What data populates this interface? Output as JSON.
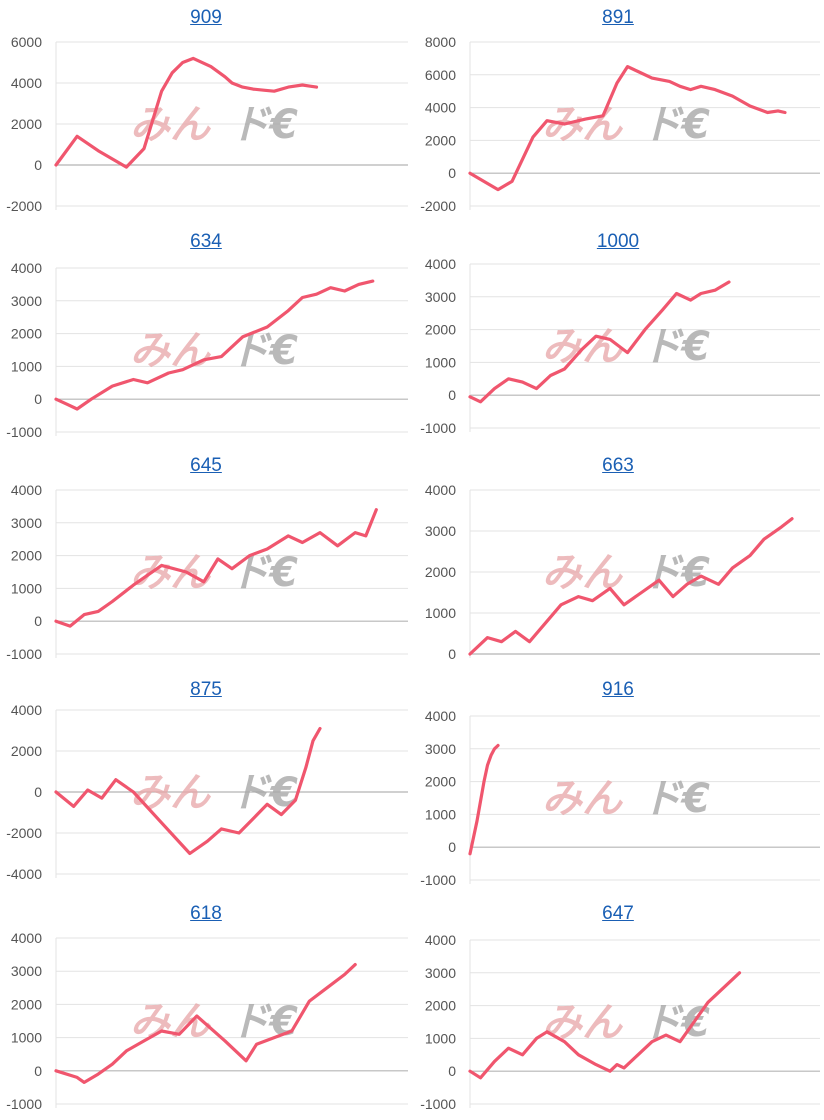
{
  "colors": {
    "line": "#f0566e",
    "grid": "#e3e3e3",
    "axis": "#b5b5b5",
    "title": "#1a5fb4"
  },
  "watermark": {
    "part1": "みん",
    "part2": "ド€"
  },
  "chart_data": [
    {
      "type": "line",
      "title": "909",
      "ylim": [
        -2000,
        6000
      ],
      "yticks": [
        "6000",
        "4000",
        "2000",
        "0",
        "-2000"
      ],
      "series": [
        {
          "x": [
            0,
            6,
            12,
            20,
            25,
            30,
            33,
            36,
            39,
            44,
            48,
            50,
            53,
            56,
            59,
            62,
            66,
            70,
            72,
            74
          ],
          "y": [
            0,
            1400,
            700,
            -100,
            800,
            3600,
            4500,
            5000,
            5200,
            4800,
            4300,
            4000,
            3800,
            3700,
            3650,
            3600,
            3800,
            3900,
            3850,
            3800
          ]
        }
      ]
    },
    {
      "type": "line",
      "title": "891",
      "ylim": [
        -2000,
        8000
      ],
      "yticks": [
        "8000",
        "6000",
        "4000",
        "2000",
        "0",
        "-2000"
      ],
      "series": [
        {
          "x": [
            0,
            8,
            12,
            18,
            22,
            27,
            33,
            38,
            42,
            45,
            48,
            52,
            57,
            60,
            63,
            66,
            70,
            75,
            80,
            85,
            88,
            90
          ],
          "y": [
            0,
            -1000,
            -500,
            2200,
            3200,
            3000,
            3300,
            3500,
            5500,
            6500,
            6200,
            5800,
            5600,
            5300,
            5100,
            5300,
            5100,
            4700,
            4100,
            3700,
            3800,
            3700
          ]
        }
      ]
    },
    {
      "type": "line",
      "title": "634",
      "ylim": [
        -1000,
        4000
      ],
      "yticks": [
        "4000",
        "3000",
        "2000",
        "1000",
        "0",
        "-1000"
      ],
      "series": [
        {
          "x": [
            0,
            3,
            6,
            10,
            16,
            22,
            26,
            32,
            36,
            42,
            47,
            53,
            60,
            66,
            70,
            74,
            78,
            82,
            86,
            90
          ],
          "y": [
            0,
            -150,
            -300,
            0,
            400,
            600,
            500,
            800,
            900,
            1200,
            1300,
            1900,
            2200,
            2700,
            3100,
            3200,
            3400,
            3300,
            3500,
            3600
          ]
        }
      ]
    },
    {
      "type": "line",
      "title": "1000",
      "ylim": [
        -1000,
        4000
      ],
      "yticks": [
        "4000",
        "3000",
        "2000",
        "1000",
        "0",
        "-1000"
      ],
      "series": [
        {
          "x": [
            0,
            3,
            7,
            11,
            15,
            19,
            23,
            27,
            32,
            36,
            40,
            45,
            50,
            55,
            59,
            63,
            66,
            70,
            74
          ],
          "y": [
            -50,
            -200,
            200,
            500,
            400,
            200,
            600,
            800,
            1400,
            1800,
            1700,
            1300,
            2000,
            2600,
            3100,
            2900,
            3100,
            3200,
            3450
          ]
        }
      ]
    },
    {
      "type": "line",
      "title": "645",
      "ylim": [
        -1000,
        4000
      ],
      "yticks": [
        "4000",
        "3000",
        "2000",
        "1000",
        "0",
        "-1000"
      ],
      "series": [
        {
          "x": [
            0,
            4,
            8,
            12,
            16,
            22,
            30,
            37,
            42,
            46,
            50,
            55,
            60,
            66,
            70,
            75,
            80,
            85,
            88,
            91
          ],
          "y": [
            0,
            -150,
            200,
            300,
            600,
            1100,
            1700,
            1500,
            1200,
            1900,
            1600,
            2000,
            2200,
            2600,
            2400,
            2700,
            2300,
            2700,
            2600,
            3400
          ]
        }
      ]
    },
    {
      "type": "line",
      "title": "663",
      "ylim": [
        0,
        4000
      ],
      "yticks": [
        "4000",
        "3000",
        "2000",
        "1000",
        "0"
      ],
      "series": [
        {
          "x": [
            0,
            5,
            9,
            13,
            17,
            21,
            26,
            31,
            35,
            40,
            44,
            49,
            54,
            58,
            62,
            66,
            71,
            75,
            80,
            84,
            89,
            92
          ],
          "y": [
            0,
            400,
            300,
            550,
            300,
            700,
            1200,
            1400,
            1300,
            1600,
            1200,
            1500,
            1800,
            1400,
            1700,
            1900,
            1700,
            2100,
            2400,
            2800,
            3100,
            3300
          ]
        }
      ]
    },
    {
      "type": "line",
      "title": "875",
      "ylim": [
        -4000,
        4000
      ],
      "yticks": [
        "4000",
        "2000",
        "0",
        "-2000",
        "-4000"
      ],
      "series": [
        {
          "x": [
            0,
            5,
            9,
            13,
            17,
            22,
            30,
            38,
            43,
            47,
            52,
            56,
            60,
            64,
            68,
            71,
            73,
            75
          ],
          "y": [
            0,
            -700,
            100,
            -300,
            600,
            0,
            -1500,
            -3000,
            -2400,
            -1800,
            -2000,
            -1300,
            -600,
            -1100,
            -400,
            1200,
            2500,
            3100
          ]
        }
      ]
    },
    {
      "type": "line",
      "title": "916",
      "ylim": [
        -1000,
        4000
      ],
      "yticks": [
        "4000",
        "3000",
        "2000",
        "1000",
        "0",
        "-1000"
      ],
      "series": [
        {
          "x": [
            0,
            1,
            2,
            3,
            4,
            5,
            6,
            7,
            8
          ],
          "y": [
            -200,
            300,
            800,
            1400,
            2000,
            2500,
            2800,
            3000,
            3100
          ]
        }
      ]
    },
    {
      "type": "line",
      "title": "618",
      "ylim": [
        -1000,
        4000
      ],
      "yticks": [
        "4000",
        "3000",
        "2000",
        "1000",
        "0",
        "-1000"
      ],
      "series": [
        {
          "x": [
            0,
            6,
            8,
            12,
            16,
            20,
            25,
            30,
            35,
            40,
            48,
            54,
            57,
            62,
            67,
            72,
            77,
            82,
            85
          ],
          "y": [
            0,
            -200,
            -350,
            -100,
            200,
            600,
            900,
            1200,
            1100,
            1650,
            900,
            300,
            800,
            1000,
            1200,
            2100,
            2500,
            2900,
            3200
          ]
        }
      ]
    },
    {
      "type": "line",
      "title": "647",
      "ylim": [
        -1000,
        4000
      ],
      "yticks": [
        "4000",
        "3000",
        "2000",
        "1000",
        "0",
        "-1000"
      ],
      "series": [
        {
          "x": [
            0,
            3,
            7,
            11,
            15,
            19,
            22,
            27,
            31,
            36,
            40,
            42,
            44,
            48,
            52,
            56,
            60,
            64,
            68,
            73,
            77
          ],
          "y": [
            0,
            -200,
            300,
            700,
            500,
            1000,
            1200,
            900,
            500,
            200,
            0,
            200,
            100,
            500,
            900,
            1100,
            900,
            1500,
            2100,
            2600,
            3000
          ]
        }
      ]
    }
  ]
}
